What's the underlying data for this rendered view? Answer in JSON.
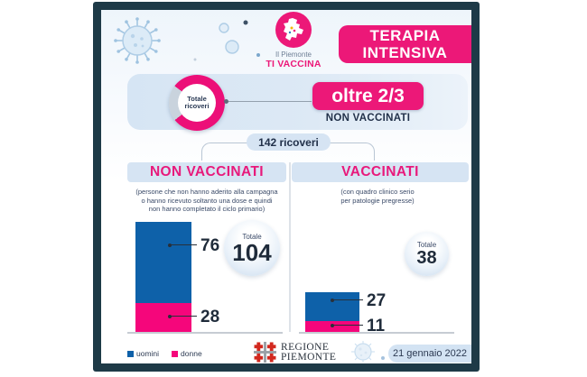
{
  "header": {
    "logo_top": "Il Piemonte",
    "logo_bottom": "TI VACCINA",
    "title_line1": "TERAPIA",
    "title_line2": "INTENSIVA"
  },
  "summary": {
    "donut_label_line1": "Totale",
    "donut_label_line2": "ricoveri",
    "highlight": "oltre 2/3",
    "highlight_sub": "NON VACCINATI"
  },
  "split_badge": "142 ricoveri",
  "labels": {
    "total": "Totale"
  },
  "columns": {
    "left": {
      "title": "NON VACCINATI",
      "desc_lines": [
        "(persone che non hanno aderito alla campagna",
        "o hanno ricevuto soltanto una dose e quindi",
        "non hanno completato il ciclo primario)"
      ]
    },
    "right": {
      "title": "VACCINATI",
      "desc_lines": [
        "(con quadro clinico serio",
        "per patologie pregresse)"
      ]
    }
  },
  "footer": {
    "region_line1": "REGIONE",
    "region_line2": "PIEMONTE",
    "date": "21 gennaio 2022"
  },
  "colors": {
    "pink": "#EC1878",
    "bar_pink": "#F5067B",
    "bar_blue": "#0E61A9",
    "frame_navy": "#1E3A47",
    "panel_light_blue": "#D6E4F3",
    "dark_text": "#1F2B3A"
  },
  "chart_data": [
    {
      "type": "pie",
      "title": "Totale ricoveri",
      "slices": [
        {
          "label": "non vaccinati",
          "fraction": 0.67,
          "annotation": "oltre 2/3 NON VACCINATI"
        },
        {
          "label": "altri",
          "fraction": 0.33
        }
      ],
      "total_annotation": "142 ricoveri"
    },
    {
      "type": "bar",
      "title": "NON VACCINATI",
      "stacked": true,
      "categories": [
        "uomini",
        "donne"
      ],
      "values": [
        76,
        28
      ],
      "total": 104,
      "colors": [
        "#0E61A9",
        "#F5067B"
      ],
      "legend_position": "bottom-left"
    },
    {
      "type": "bar",
      "title": "VACCINATI",
      "stacked": true,
      "categories": [
        "uomini",
        "donne"
      ],
      "values": [
        27,
        11
      ],
      "total": 38,
      "colors": [
        "#0E61A9",
        "#F5067B"
      ],
      "legend_position": "bottom-left"
    }
  ]
}
